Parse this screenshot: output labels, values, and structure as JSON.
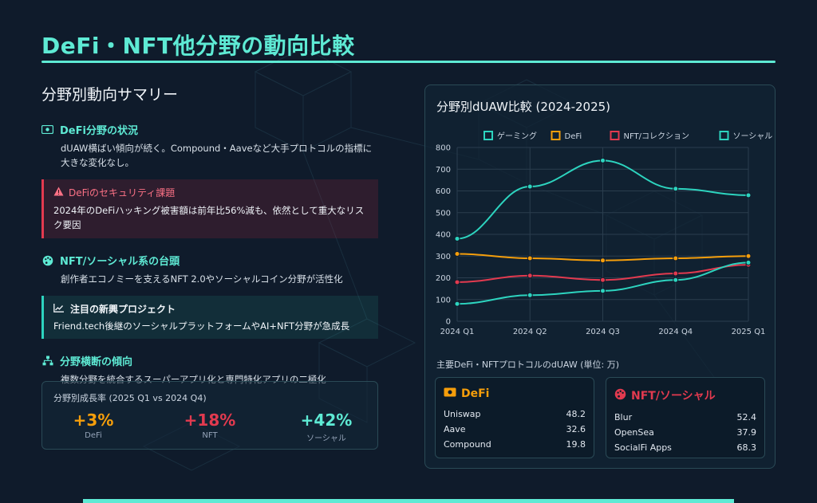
{
  "page": {
    "title": "DeFi・NFT他分野の動向比較"
  },
  "summary": {
    "heading": "分野別動向サマリー",
    "defi": {
      "title": "DeFi分野の状況",
      "body": "dUAW横ばい傾向が続く。Compound・Aaveなど大手プロトコルの指標に大きな変化なし。",
      "icon": "money-bill-icon"
    },
    "security": {
      "title": "DeFiのセキュリティ課題",
      "body": "2024年のDeFiハッキング被害額は前年比56%減も、依然として重大なリスク要因",
      "icon": "warning-icon"
    },
    "nft": {
      "title": "NFT/ソーシャル系の台頭",
      "body": "創作者エコノミーを支えるNFT 2.0やソーシャルコイン分野が活性化",
      "icon": "palette-icon"
    },
    "emerging": {
      "title": "注目の新興プロジェクト",
      "body": "Friend.tech後継のソーシャルプラットフォームやAI+NFT分野が急成長",
      "icon": "trend-chart-icon"
    },
    "cross": {
      "title": "分野横断の傾向",
      "body": "複数分野を統合するスーパーアプリ化と専門特化アプリの二極化",
      "icon": "sitemap-icon"
    }
  },
  "growth": {
    "title": "分野別成長率 (2025 Q1 vs 2024 Q4)",
    "items": [
      {
        "value": "+3%",
        "label": "DeFi",
        "color": "#f59e0b"
      },
      {
        "value": "+18%",
        "label": "NFT",
        "color": "#e23a4f"
      },
      {
        "value": "+42%",
        "label": "ソーシャル",
        "color": "#5eead4"
      }
    ]
  },
  "panel": {
    "title": "分野別dUAW比較 (2024-2025)",
    "table_title": "主要DeFi・NFTプロトコルのdUAW (単位: 万)"
  },
  "chart_data": {
    "type": "line",
    "categories": [
      "2024 Q1",
      "2024 Q2",
      "2024 Q3",
      "2024 Q4",
      "2025 Q1"
    ],
    "ylim": [
      0,
      800
    ],
    "yticks": [
      0,
      100,
      200,
      300,
      400,
      500,
      600,
      700,
      800
    ],
    "grid": true,
    "legend": "top",
    "series": [
      {
        "name": "ゲーミング",
        "color": "#2dd4bf",
        "values": [
          380,
          620,
          740,
          610,
          580
        ]
      },
      {
        "name": "DeFi",
        "color": "#f59e0b",
        "values": [
          310,
          290,
          280,
          290,
          300
        ]
      },
      {
        "name": "NFT/コレクション",
        "color": "#e23a4f",
        "values": [
          180,
          210,
          190,
          220,
          260
        ]
      },
      {
        "name": "ソーシャル",
        "color": "#2dd4bf",
        "values": [
          80,
          120,
          140,
          190,
          270
        ]
      }
    ]
  },
  "defi_card": {
    "title": "DeFi",
    "icon": "money-bill-icon",
    "color": "#f59e0b",
    "rows": [
      {
        "name": "Uniswap",
        "value": "48.2"
      },
      {
        "name": "Aave",
        "value": "32.6"
      },
      {
        "name": "Compound",
        "value": "19.8"
      }
    ]
  },
  "nft_card": {
    "title": "NFT/ソーシャル",
    "icon": "palette-icon",
    "color": "#e23a4f",
    "rows": [
      {
        "name": "Blur",
        "value": "52.4"
      },
      {
        "name": "OpenSea",
        "value": "37.9"
      },
      {
        "name": "SocialFi Apps",
        "value": "68.3"
      }
    ]
  }
}
